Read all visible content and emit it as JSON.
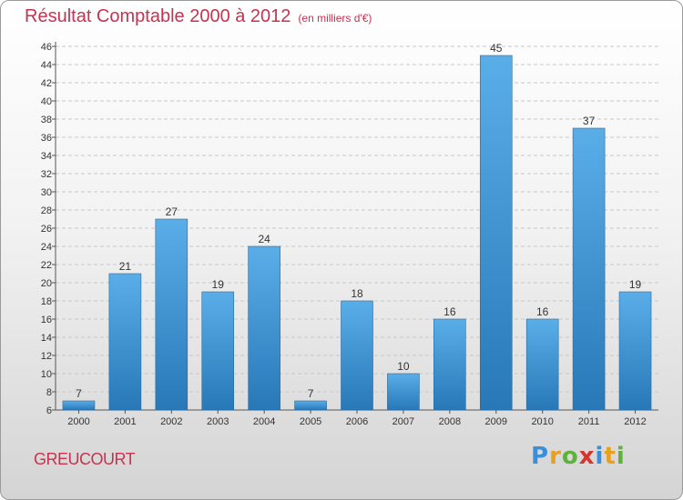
{
  "header": {
    "title": "Résultat Comptable 2000 à 2012",
    "subtitle": "(en milliers d'€)"
  },
  "footer": {
    "commune": "GREUCOURT",
    "logo_letters": [
      "P",
      "r",
      "o",
      "x",
      "i",
      "t",
      "i"
    ],
    "logo_colors": [
      "#3a8fd8",
      "#e8a020",
      "#5fb13a",
      "#d8342c",
      "#3a8fd8",
      "#e8a020",
      "#5fb13a"
    ]
  },
  "colors": {
    "bar_top": "#5aaee8",
    "bar_bottom": "#2878b8",
    "grid": "#c8c8c8",
    "title": "#c8324e"
  },
  "chart_data": {
    "type": "bar",
    "title": "Résultat Comptable 2000 à 2012",
    "subtitle": "(en milliers d'€)",
    "xlabel": "",
    "ylabel": "",
    "categories": [
      "2000",
      "2001",
      "2002",
      "2003",
      "2004",
      "2005",
      "2006",
      "2007",
      "2008",
      "2009",
      "2010",
      "2011",
      "2012"
    ],
    "values": [
      7,
      21,
      27,
      19,
      24,
      7,
      18,
      10,
      16,
      45,
      16,
      37,
      19
    ],
    "ylim": [
      6,
      46
    ],
    "ytick_step": 2,
    "grid": true
  }
}
